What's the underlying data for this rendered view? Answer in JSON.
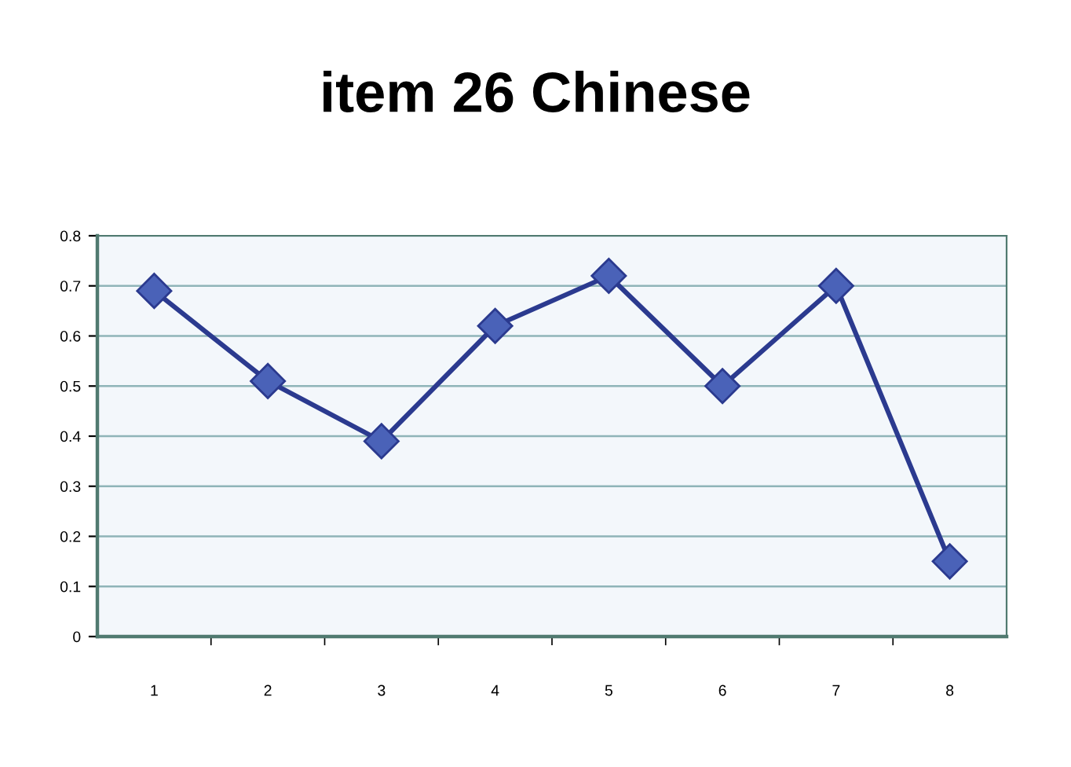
{
  "chart_data": {
    "type": "line",
    "title": "item 26 Chinese",
    "categories": [
      "1",
      "2",
      "3",
      "4",
      "5",
      "6",
      "7",
      "8"
    ],
    "series": [
      {
        "color": "#2b3a8f",
        "values": [
          0.69,
          0.51,
          0.39,
          0.62,
          0.72,
          0.5,
          0.7,
          0.15
        ]
      }
    ],
    "ylim": [
      0,
      0.8
    ],
    "yticks": [
      0,
      0.1,
      0.2,
      0.3,
      0.4,
      0.5,
      0.6,
      0.7,
      0.8
    ],
    "grid": "y",
    "marker": "diamond",
    "line_style": "solid"
  }
}
